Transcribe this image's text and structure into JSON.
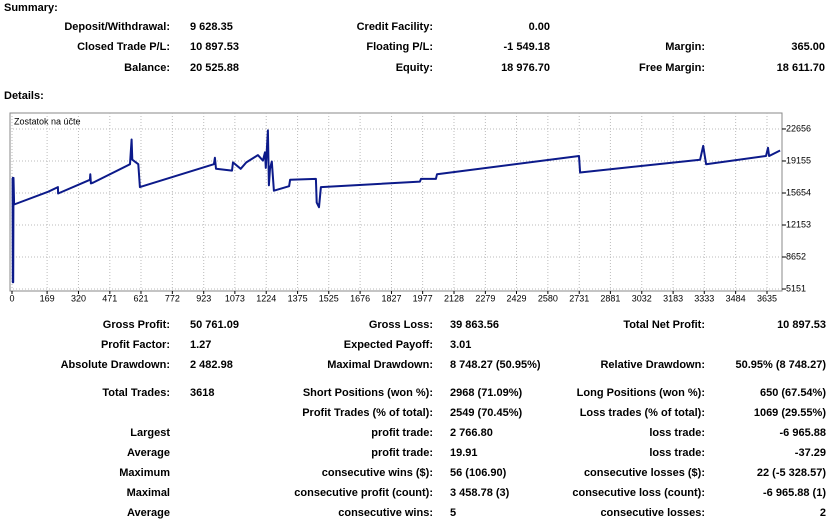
{
  "summary": {
    "title": "Summary:",
    "rows": [
      [
        {
          "label": "Deposit/Withdrawal:",
          "value": "9 628.35"
        },
        {
          "label": "Credit Facility:",
          "value": "0.00"
        }
      ],
      [
        {
          "label": "Closed Trade P/L:",
          "value": "10 897.53"
        },
        {
          "label": "Floating P/L:",
          "value": "-1 549.18"
        },
        {
          "label": "Margin:",
          "value": "365.00"
        }
      ],
      [
        {
          "label": "Balance:",
          "value": "20 525.88"
        },
        {
          "label": "Equity:",
          "value": "18 976.70"
        },
        {
          "label": "Free Margin:",
          "value": "18 611.70"
        }
      ]
    ]
  },
  "details": {
    "title": "Details:",
    "rows": [
      {
        "c1": {
          "label": "Gross Profit:",
          "value": "50 761.09"
        },
        "c2": {
          "label": "Gross Loss:",
          "value": "39 863.56"
        },
        "c3": {
          "label": "Total Net Profit:",
          "value": "10 897.53"
        }
      },
      {
        "c1": {
          "label": "Profit Factor:",
          "value": "1.27"
        },
        "c2": {
          "label": "Expected Payoff:",
          "value": "3.01"
        }
      },
      {
        "c1": {
          "label": "Absolute Drawdown:",
          "value": "2 482.98"
        },
        "c2": {
          "label": "Maximal Drawdown:",
          "value": "8 748.27 (50.95%)"
        },
        "c3": {
          "label": "Relative Drawdown:",
          "value": "50.95% (8 748.27)"
        }
      },
      {
        "c1": {
          "label": "Total Trades:",
          "value": "3618"
        },
        "c2": {
          "label": "Short Positions (won %):",
          "value": "2968 (71.09%)"
        },
        "c3": {
          "label": "Long Positions (won %):",
          "value": "650 (67.54%)"
        }
      },
      {
        "c2": {
          "label": "Profit Trades (% of total):",
          "value": "2549 (70.45%)"
        },
        "c3": {
          "label": "Loss trades (% of total):",
          "value": "1069 (29.55%)"
        }
      },
      {
        "c1": {
          "label": "Largest"
        },
        "c2": {
          "label": "profit trade:",
          "value": "2 766.80"
        },
        "c3": {
          "label": "loss trade:",
          "value": "-6 965.88"
        }
      },
      {
        "c1": {
          "label": "Average"
        },
        "c2": {
          "label": "profit trade:",
          "value": "19.91"
        },
        "c3": {
          "label": "loss trade:",
          "value": "-37.29"
        }
      },
      {
        "c1": {
          "label": "Maximum"
        },
        "c2": {
          "label": "consecutive wins ($):",
          "value": "56 (106.90)"
        },
        "c3": {
          "label": "consecutive losses ($):",
          "value": "22 (-5 328.57)"
        }
      },
      {
        "c1": {
          "label": "Maximal"
        },
        "c2": {
          "label": "consecutive profit (count):",
          "value": "3 458.78 (3)"
        },
        "c3": {
          "label": "consecutive loss (count):",
          "value": "-6 965.88 (1)"
        }
      },
      {
        "c1": {
          "label": "Average"
        },
        "c2": {
          "label": "consecutive wins:",
          "value": "5"
        },
        "c3": {
          "label": "consecutive losses:",
          "value": "2"
        }
      }
    ]
  },
  "chart_data": {
    "type": "line",
    "title": "Zostatok na účte",
    "color": "#0c1a8a",
    "grid": true,
    "x": [
      0,
      3,
      4,
      6,
      7,
      10,
      175,
      221,
      222,
      375,
      377,
      380,
      392,
      568,
      576,
      579,
      608,
      616,
      972,
      977,
      982,
      1059,
      1064,
      1101,
      1128,
      1184,
      1208,
      1218,
      1222,
      1232,
      1237,
      1242,
      1251,
      1261,
      1334,
      1339,
      1463,
      1467,
      1478,
      1487,
      1964,
      1969,
      2041,
      2046,
      2730,
      2735,
      3313,
      3328,
      3342,
      3630,
      3640,
      3645,
      3698
    ],
    "values": [
      17300,
      17300,
      5900,
      5900,
      17300,
      14400,
      15800,
      16300,
      15600,
      17100,
      17700,
      16700,
      16800,
      18800,
      21500,
      19300,
      18800,
      16300,
      18800,
      19500,
      18300,
      18100,
      19000,
      18300,
      19000,
      19800,
      19200,
      20100,
      18400,
      22500,
      16500,
      18300,
      19100,
      15900,
      16400,
      17100,
      17200,
      14600,
      14100,
      16300,
      16900,
      17200,
      17200,
      17700,
      19700,
      17900,
      19300,
      20800,
      18800,
      19700,
      20600,
      19700,
      20300
    ],
    "xlim": [
      0,
      3700
    ],
    "xticks": [
      0,
      169,
      320,
      471,
      621,
      772,
      923,
      1073,
      1224,
      1375,
      1525,
      1676,
      1827,
      1977,
      2128,
      2279,
      2429,
      2580,
      2731,
      2881,
      3032,
      3183,
      3333,
      3484,
      3635
    ],
    "ylim": [
      5000,
      23900
    ],
    "yticks": [
      5151,
      8652,
      12153,
      15654,
      19155,
      22656
    ]
  }
}
